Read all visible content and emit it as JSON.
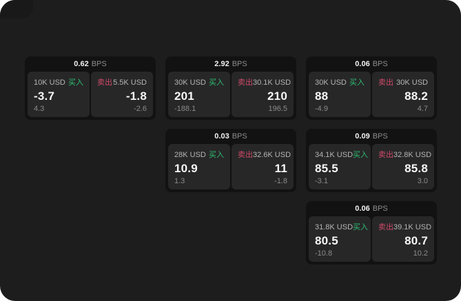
{
  "labels": {
    "bps": "BPS",
    "buy": "买入",
    "sell": "卖出"
  },
  "colors": {
    "buy": "#2fbe70",
    "sell": "#cf4a68"
  },
  "cards": [
    {
      "row": 1,
      "col": 1,
      "bps": "0.62",
      "buy": {
        "amount": "10K USD",
        "value": "-3.7",
        "sub": "4.3"
      },
      "sell": {
        "amount": "5.5K USD",
        "value": "-1.8",
        "sub": "-2.6"
      }
    },
    {
      "row": 1,
      "col": 2,
      "bps": "2.92",
      "buy": {
        "amount": "30K USD",
        "value": "201",
        "sub": "-188.1"
      },
      "sell": {
        "amount": "30.1K USD",
        "value": "210",
        "sub": "196.5"
      }
    },
    {
      "row": 1,
      "col": 3,
      "bps": "0.06",
      "buy": {
        "amount": "30K USD",
        "value": "88",
        "sub": "-4.9"
      },
      "sell": {
        "amount": "30K USD",
        "value": "88.2",
        "sub": "4.7"
      }
    },
    {
      "row": 2,
      "col": 2,
      "bps": "0.03",
      "buy": {
        "amount": "28K USD",
        "value": "10.9",
        "sub": "1.3"
      },
      "sell": {
        "amount": "32.6K USD",
        "value": "11",
        "sub": "-1.8"
      }
    },
    {
      "row": 2,
      "col": 3,
      "bps": "0.09",
      "buy": {
        "amount": "34.1K USD",
        "value": "85.5",
        "sub": "-3.1"
      },
      "sell": {
        "amount": "32.8K USD",
        "value": "85.8",
        "sub": "3.0"
      }
    },
    {
      "row": 3,
      "col": 3,
      "bps": "0.06",
      "buy": {
        "amount": "31.8K USD",
        "value": "80.5",
        "sub": "-10.8"
      },
      "sell": {
        "amount": "39.1K USD",
        "value": "80.7",
        "sub": "10.2"
      }
    }
  ]
}
